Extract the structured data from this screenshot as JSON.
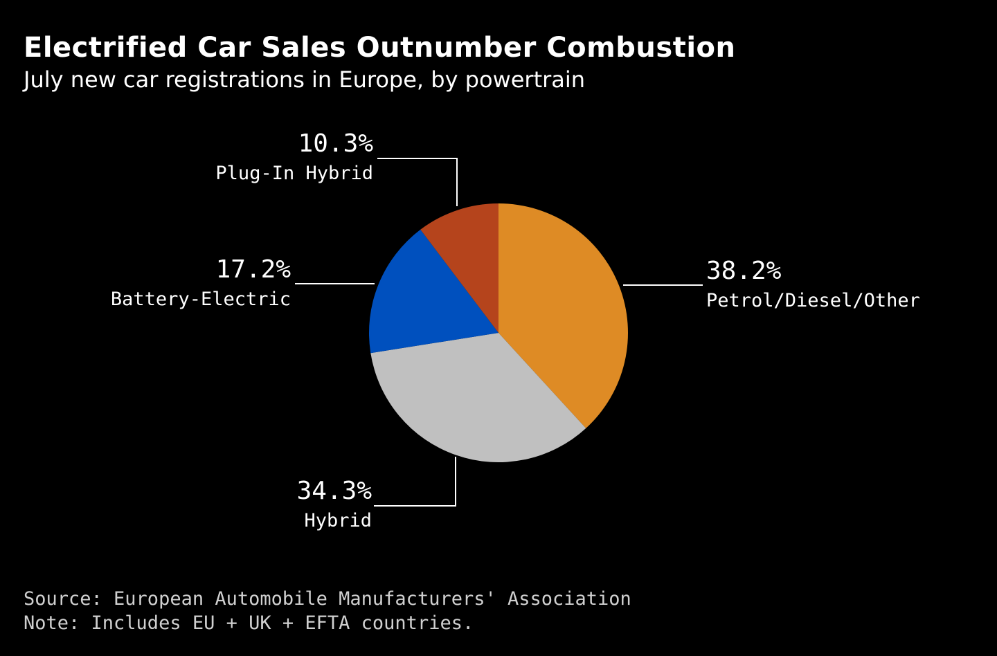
{
  "title": "Electrified Car Sales Outnumber Combustion",
  "subtitle": "July new car registrations in Europe, by powertrain",
  "footer": {
    "source": "Source: European Automobile Manufacturers' Association",
    "note": "Note: Includes EU + UK + EFTA countries."
  },
  "chart_data": {
    "type": "pie",
    "title": "Electrified Car Sales Outnumber Combustion",
    "subtitle": "July new car registrations in Europe, by powertrain",
    "slices": [
      {
        "label": "Petrol/Diesel/Other",
        "value": 38.2,
        "value_label": "38.2%",
        "color": "#DE8B25"
      },
      {
        "label": "Hybrid",
        "value": 34.3,
        "value_label": "34.3%",
        "color": "#C0C0C0"
      },
      {
        "label": "Battery-Electric",
        "value": 17.2,
        "value_label": "17.2%",
        "color": "#0050BE"
      },
      {
        "label": "Plug-In Hybrid",
        "value": 10.3,
        "value_label": "10.3%",
        "color": "#B5441C"
      }
    ],
    "start": "12 o'clock",
    "direction": "clockwise",
    "legend": "none"
  }
}
